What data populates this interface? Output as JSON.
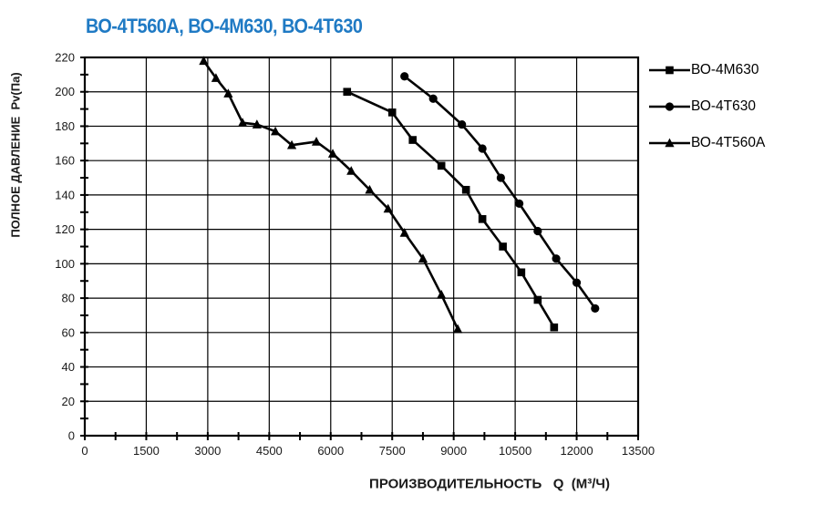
{
  "chart_data": {
    "type": "line",
    "title": "ВО-4Т560А, ВО-4М630, ВО-4Т630",
    "title_color": "#1F7AC4",
    "xlabel": "ПРОИЗВОДИТЕЛЬНОСТЬ   Q  (М³/Ч)",
    "ylabel": "ПОЛНОЕ ДАВЛЕНИЕ  Pv(Па)",
    "xlim": [
      0,
      13500
    ],
    "ylim": [
      0,
      220
    ],
    "x_tick_step": 1500,
    "x_minor_tick_step": 750,
    "y_tick_step": 20,
    "y_minor_tick_step": 10,
    "x_tick_labels": [
      "0",
      "1500",
      "3000",
      "4500",
      "6000",
      "7500",
      "9000",
      "10500",
      "12000",
      "13500"
    ],
    "y_tick_labels": [
      "0",
      "20",
      "40",
      "60",
      "80",
      "100",
      "120",
      "140",
      "160",
      "180",
      "200",
      "220"
    ],
    "grid": true,
    "legend_position": "right",
    "axis_color": "#000000",
    "line_color": "#000000",
    "series": [
      {
        "name": "ВО-4М630",
        "marker": "square",
        "color": "#000000",
        "points": [
          [
            6400,
            200
          ],
          [
            7500,
            188
          ],
          [
            8000,
            172
          ],
          [
            8700,
            157
          ],
          [
            9300,
            143
          ],
          [
            9700,
            126
          ],
          [
            10200,
            110
          ],
          [
            10650,
            95
          ],
          [
            11050,
            79
          ],
          [
            11450,
            63
          ]
        ]
      },
      {
        "name": "ВО-4Т630",
        "marker": "circle",
        "color": "#000000",
        "points": [
          [
            7800,
            209
          ],
          [
            8500,
            196
          ],
          [
            9200,
            181
          ],
          [
            9700,
            167
          ],
          [
            10150,
            150
          ],
          [
            10600,
            135
          ],
          [
            11050,
            119
          ],
          [
            11500,
            103
          ],
          [
            12000,
            89
          ],
          [
            12450,
            74
          ]
        ]
      },
      {
        "name": "ВО-4Т560А",
        "marker": "triangle",
        "color": "#000000",
        "points": [
          [
            2900,
            218
          ],
          [
            3200,
            208
          ],
          [
            3500,
            199
          ],
          [
            3850,
            182
          ],
          [
            4200,
            181
          ],
          [
            4650,
            177
          ],
          [
            5050,
            169
          ],
          [
            5650,
            171
          ],
          [
            6050,
            164
          ],
          [
            6500,
            154
          ],
          [
            6950,
            143
          ],
          [
            7400,
            132
          ],
          [
            7800,
            118
          ],
          [
            8250,
            103
          ],
          [
            8700,
            82
          ],
          [
            9100,
            62
          ]
        ]
      }
    ]
  }
}
